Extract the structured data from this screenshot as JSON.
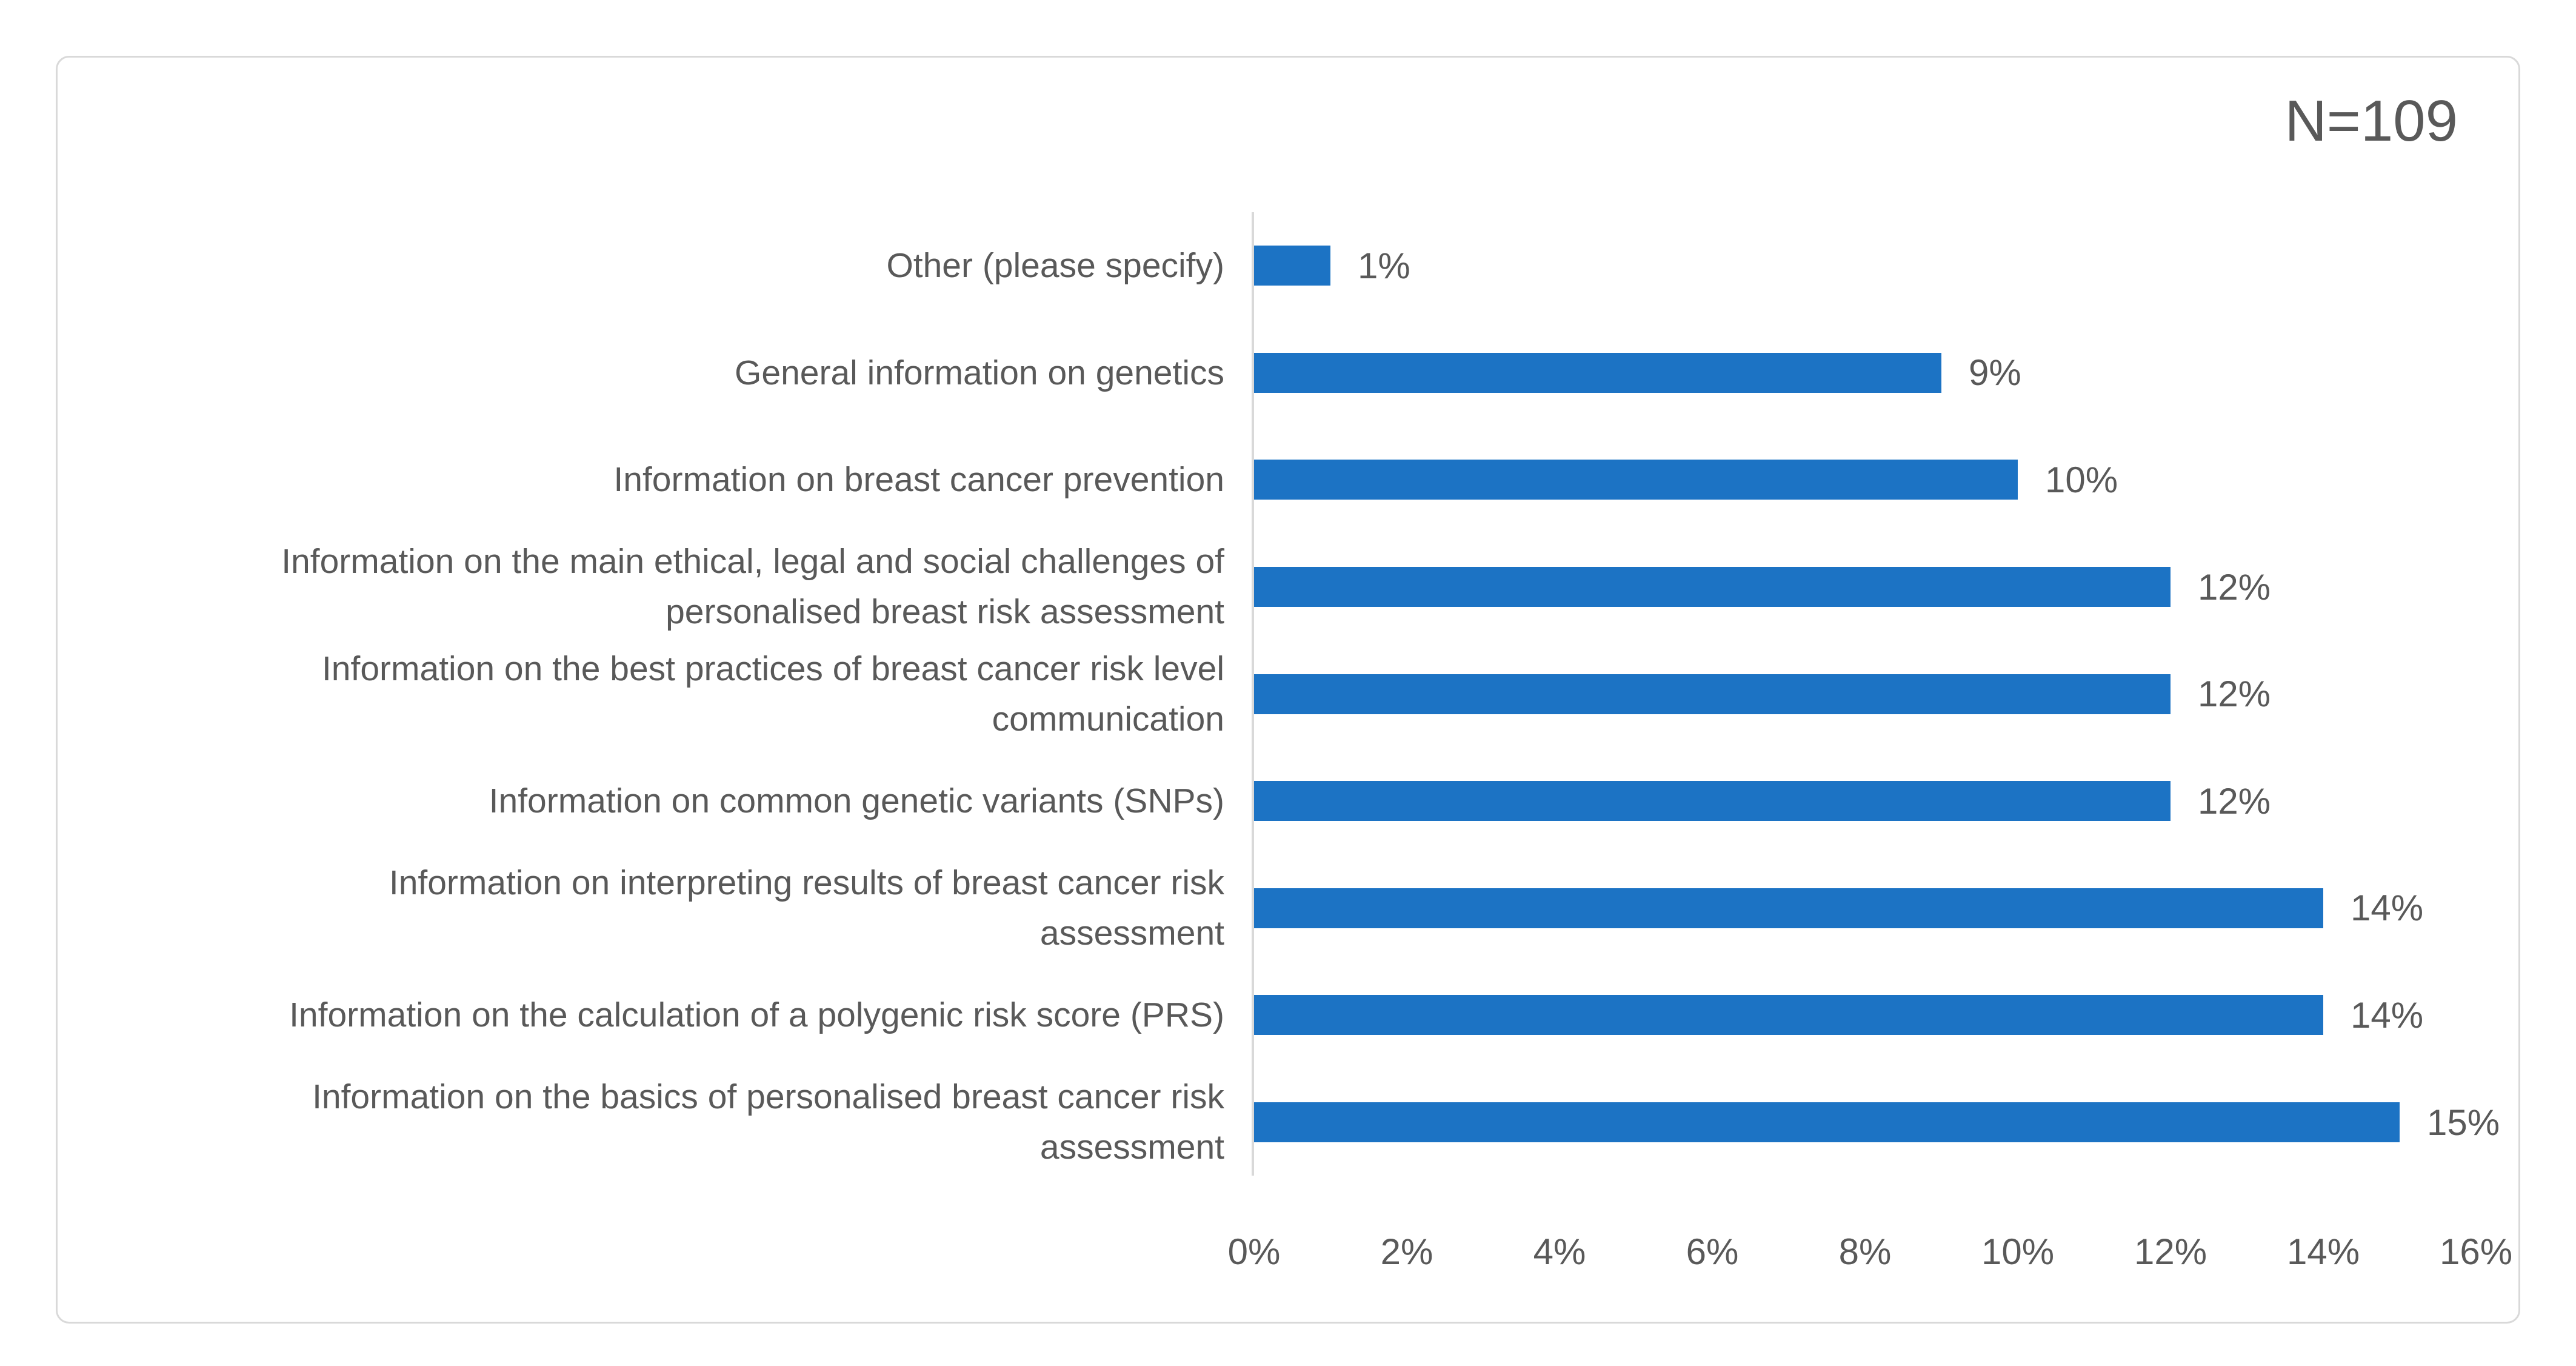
{
  "chart": {
    "colors": {
      "bar": "#1C73C4",
      "text": "#595959",
      "axis": "#D9D9D9",
      "frameborder": "#D9D9D9"
    }
  },
  "chart_data": {
    "type": "bar",
    "orientation": "horizontal",
    "title": "",
    "annotation": "N=109",
    "categories": [
      "Other (please specify)",
      "General information on genetics",
      "Information on breast cancer prevention",
      "Information on the main ethical, legal and social challenges of\npersonalised breast risk assessment",
      "Information on the best practices of breast cancer risk level\ncommunication",
      "Information on common genetic variants (SNPs)",
      "Information on interpreting results of breast cancer risk\nassessment",
      "Information on the calculation of a polygenic risk score (PRS)",
      "Information on the basics of personalised breast cancer risk\nassessment"
    ],
    "values": [
      1,
      9,
      10,
      12,
      12,
      12,
      14,
      14,
      15
    ],
    "value_labels": [
      "1%",
      "9%",
      "10%",
      "12%",
      "12%",
      "12%",
      "14%",
      "14%",
      "15%"
    ],
    "x_ticks": [
      "0%",
      "2%",
      "4%",
      "6%",
      "8%",
      "10%",
      "12%",
      "14%",
      "16%"
    ],
    "xlim": [
      0,
      16
    ],
    "xlabel": "",
    "ylabel": "",
    "grid": false,
    "legend": false
  }
}
